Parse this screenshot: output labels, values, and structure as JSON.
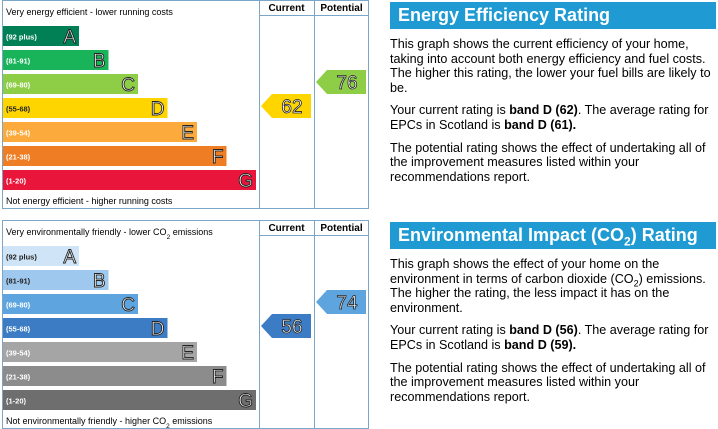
{
  "energy": {
    "top_label": [
      {
        "text": "Very energy efficient - lower running costs"
      }
    ],
    "bottom_label": [
      {
        "text": "Not energy efficient - higher running costs"
      }
    ],
    "columns": [
      "Current",
      "Potential"
    ],
    "bands": [
      {
        "range": "(92 plus)",
        "letter": "A",
        "color": "#008054"
      },
      {
        "range": "(81-91)",
        "letter": "B",
        "color": "#19b459"
      },
      {
        "range": "(69-80)",
        "letter": "C",
        "color": "#8dce46"
      },
      {
        "range": "(55-68)",
        "letter": "D",
        "color": "#ffd500"
      },
      {
        "range": "(39-54)",
        "letter": "E",
        "color": "#fcaa3c"
      },
      {
        "range": "(21-38)",
        "letter": "F",
        "color": "#ef7d23"
      },
      {
        "range": "(1-20)",
        "letter": "G",
        "color": "#e9153b"
      }
    ],
    "current": 62,
    "potential": 76
  },
  "environment": {
    "top_label": [
      {
        "text": "Very environmentally friendly - lower CO"
      },
      {
        "text": "2",
        "sub": true
      },
      {
        "text": " emissions"
      }
    ],
    "bottom_label": [
      {
        "text": "Not environmentally friendly - higher CO"
      },
      {
        "text": "2",
        "sub": true
      },
      {
        "text": " emissions"
      }
    ],
    "columns": [
      "Current",
      "Potential"
    ],
    "bands": [
      {
        "range": "(92 plus)",
        "letter": "A",
        "color": "#cfe4f6"
      },
      {
        "range": "(81-91)",
        "letter": "B",
        "color": "#9fc8ee"
      },
      {
        "range": "(69-80)",
        "letter": "C",
        "color": "#5ea5e0"
      },
      {
        "range": "(55-68)",
        "letter": "D",
        "color": "#3c7cc4"
      },
      {
        "range": "(39-54)",
        "letter": "E",
        "color": "#a5a5a5"
      },
      {
        "range": "(21-38)",
        "letter": "F",
        "color": "#8c8c8c"
      },
      {
        "range": "(1-20)",
        "letter": "G",
        "color": "#6e6e6e"
      }
    ],
    "current": 56,
    "potential": 74
  },
  "energy_text": {
    "heading": [
      {
        "text": "Energy Efficiency Rating"
      }
    ],
    "paragraphs": [
      [
        {
          "text": "This graph shows the current efficiency of your home, taking into account both energy efficiency and fuel costs. The higher this rating, the lower your fuel bills are likely to be."
        }
      ],
      [
        {
          "text": "Your current rating is "
        },
        {
          "text": "band D (62)",
          "bold": true
        },
        {
          "text": ". The average rating for EPCs in Scotland is "
        },
        {
          "text": "band D (61).",
          "bold": true
        }
      ],
      [
        {
          "text": "The potential rating shows the effect of undertaking all of the improvement measures listed within your recommendations report."
        }
      ]
    ]
  },
  "environment_text": {
    "heading": [
      {
        "text": "Environmental Impact (CO"
      },
      {
        "text": "2",
        "sub": true
      },
      {
        "text": ") Rating"
      }
    ],
    "paragraphs": [
      [
        {
          "text": "This graph shows the effect of your home on the environment in terms of carbon dioxide (CO"
        },
        {
          "text": "2",
          "sub": true
        },
        {
          "text": ") emissions. The higher the rating, the less impact it has on the environment."
        }
      ],
      [
        {
          "text": "Your current rating is "
        },
        {
          "text": "band D (56)",
          "bold": true
        },
        {
          "text": ". The average rating for EPCs in Scotland is "
        },
        {
          "text": "band D (59).",
          "bold": true
        }
      ],
      [
        {
          "text": "The potential rating shows the effect of undertaking all of the improvement measures listed within your recommendations report."
        }
      ]
    ]
  }
}
